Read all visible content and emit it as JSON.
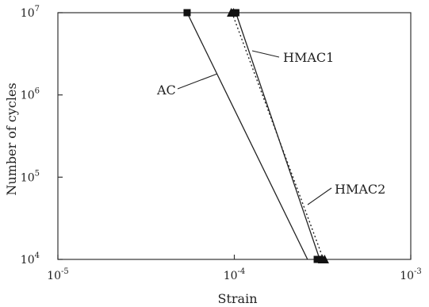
{
  "chart_data": {
    "type": "line",
    "title": "",
    "xlabel": "Strain",
    "ylabel": "Number of cycles",
    "x_scale": "log",
    "y_scale": "log",
    "xlim": [
      1e-05,
      0.001
    ],
    "ylim": [
      10000.0,
      10000000.0
    ],
    "x_ticks": [
      {
        "value": 1e-05,
        "base": "10",
        "exp": "-5"
      },
      {
        "value": 0.0001,
        "base": "10",
        "exp": "-4"
      },
      {
        "value": 0.001,
        "base": "10",
        "exp": "-3"
      }
    ],
    "y_ticks": [
      {
        "value": 10000.0,
        "base": "10",
        "exp": "4"
      },
      {
        "value": 100000.0,
        "base": "10",
        "exp": "5"
      },
      {
        "value": 1000000.0,
        "base": "10",
        "exp": "6"
      },
      {
        "value": 10000000.0,
        "base": "10",
        "exp": "7"
      }
    ],
    "grid": false,
    "series": [
      {
        "name": "AC",
        "line_style": "solid",
        "marker": "square",
        "line": [
          {
            "x": 5.4e-05,
            "y": 10000000.0
          },
          {
            "x": 0.00026,
            "y": 10000.0
          }
        ],
        "markers": [
          {
            "x": 5.4e-05,
            "y": 10000000.0
          }
        ]
      },
      {
        "name": "HMAC1",
        "line_style": "solid",
        "marker": "square",
        "line": [
          {
            "x": 0.000102,
            "y": 10000000.0
          },
          {
            "x": 0.000305,
            "y": 10000.0
          }
        ],
        "markers": [
          {
            "x": 0.0001,
            "y": 10000000.0
          },
          {
            "x": 0.000102,
            "y": 10000000.0
          },
          {
            "x": 0.000295,
            "y": 10000.0
          },
          {
            "x": 0.000305,
            "y": 10000.0
          }
        ]
      },
      {
        "name": "HMAC2",
        "line_style": "dotted",
        "marker": "triangle",
        "line": [
          {
            "x": 9.7e-05,
            "y": 10000000.0
          },
          {
            "x": 0.00032,
            "y": 10000.0
          }
        ],
        "markers": [
          {
            "x": 9.6e-05,
            "y": 10000000.0
          },
          {
            "x": 9.9e-05,
            "y": 10000000.0
          },
          {
            "x": 0.000315,
            "y": 10000.0
          },
          {
            "x": 0.000325,
            "y": 10000.0
          }
        ]
      }
    ]
  }
}
